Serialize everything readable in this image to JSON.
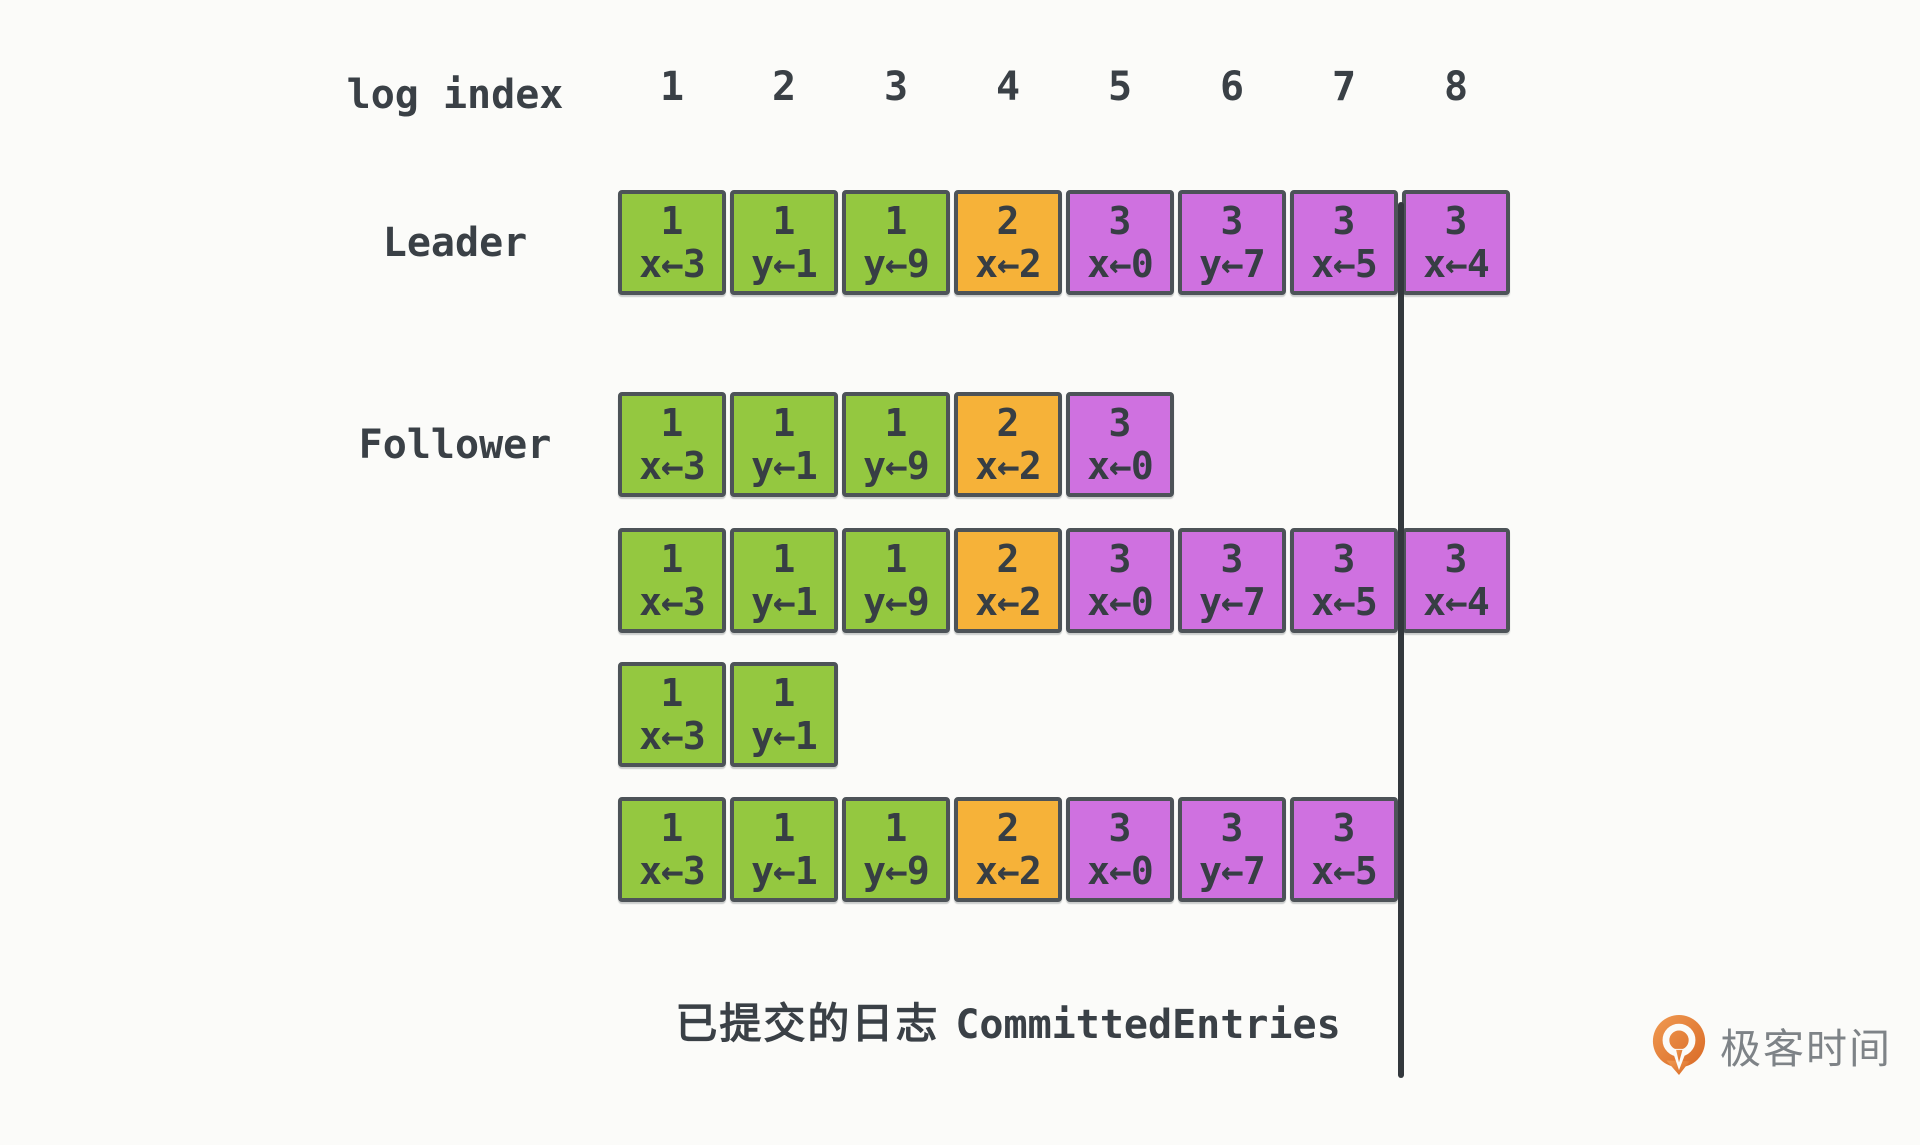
{
  "header": {
    "label": "log index",
    "indices": [
      "1",
      "2",
      "3",
      "4",
      "5",
      "6",
      "7",
      "8"
    ]
  },
  "colors": {
    "bg": "#fbfbf9",
    "green": "#94c840",
    "orange": "#f6b239",
    "purple": "#cf71e0",
    "border": "#4d5358",
    "text": "#373e44",
    "label": "#3a4046",
    "line": "#33383d",
    "brand_text": "#7e8387",
    "brand_orange": "#e1762f",
    "brand_orange_light": "#f09a52"
  },
  "log_rows": [
    {
      "name": "leader",
      "label": "Leader",
      "entries": [
        {
          "term": "1",
          "cmd": "x←3",
          "color": "green"
        },
        {
          "term": "1",
          "cmd": "y←1",
          "color": "green"
        },
        {
          "term": "1",
          "cmd": "y←9",
          "color": "green"
        },
        {
          "term": "2",
          "cmd": "x←2",
          "color": "orange"
        },
        {
          "term": "3",
          "cmd": "x←0",
          "color": "purple"
        },
        {
          "term": "3",
          "cmd": "y←7",
          "color": "purple"
        },
        {
          "term": "3",
          "cmd": "x←5",
          "color": "purple"
        },
        {
          "term": "3",
          "cmd": "x←4",
          "color": "purple"
        }
      ]
    },
    {
      "name": "follower-1",
      "label": "Follower",
      "entries": [
        {
          "term": "1",
          "cmd": "x←3",
          "color": "green"
        },
        {
          "term": "1",
          "cmd": "y←1",
          "color": "green"
        },
        {
          "term": "1",
          "cmd": "y←9",
          "color": "green"
        },
        {
          "term": "2",
          "cmd": "x←2",
          "color": "orange"
        },
        {
          "term": "3",
          "cmd": "x←0",
          "color": "purple"
        }
      ]
    },
    {
      "name": "follower-2",
      "label": "",
      "entries": [
        {
          "term": "1",
          "cmd": "x←3",
          "color": "green"
        },
        {
          "term": "1",
          "cmd": "y←1",
          "color": "green"
        },
        {
          "term": "1",
          "cmd": "y←9",
          "color": "green"
        },
        {
          "term": "2",
          "cmd": "x←2",
          "color": "orange"
        },
        {
          "term": "3",
          "cmd": "x←0",
          "color": "purple"
        },
        {
          "term": "3",
          "cmd": "y←7",
          "color": "purple"
        },
        {
          "term": "3",
          "cmd": "x←5",
          "color": "purple"
        },
        {
          "term": "3",
          "cmd": "x←4",
          "color": "purple"
        }
      ]
    },
    {
      "name": "follower-3",
      "label": "",
      "entries": [
        {
          "term": "1",
          "cmd": "x←3",
          "color": "green"
        },
        {
          "term": "1",
          "cmd": "y←1",
          "color": "green"
        }
      ]
    },
    {
      "name": "follower-4",
      "label": "",
      "entries": [
        {
          "term": "1",
          "cmd": "x←3",
          "color": "green"
        },
        {
          "term": "1",
          "cmd": "y←1",
          "color": "green"
        },
        {
          "term": "1",
          "cmd": "y←9",
          "color": "green"
        },
        {
          "term": "2",
          "cmd": "x←2",
          "color": "orange"
        },
        {
          "term": "3",
          "cmd": "x←0",
          "color": "purple"
        },
        {
          "term": "3",
          "cmd": "y←7",
          "color": "purple"
        },
        {
          "term": "3",
          "cmd": "x←5",
          "color": "purple"
        }
      ]
    }
  ],
  "committed_label": {
    "zh": "已提交的日志",
    "en": "CommittedEntries"
  },
  "brand": {
    "name": "极客时间"
  }
}
